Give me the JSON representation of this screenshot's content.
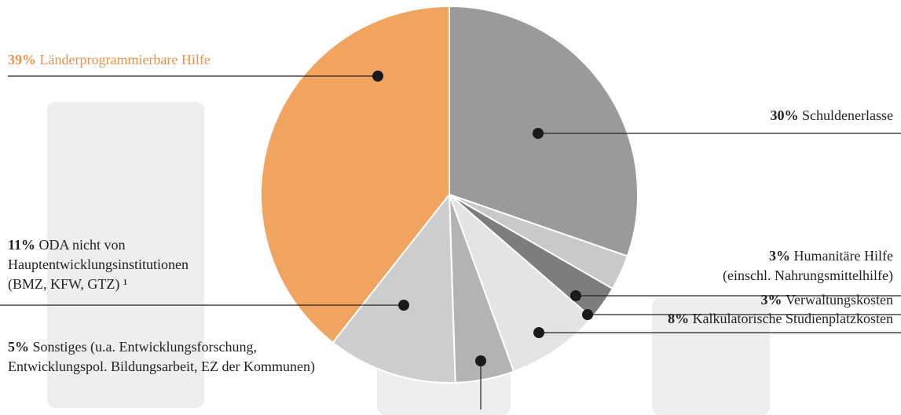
{
  "chart_data": {
    "type": "pie",
    "categories": [
      [
        "Schuldenerlasse"
      ],
      [
        "Humanitäre Hilfe",
        "(einschl. Nahrungsmittelhilfe)"
      ],
      [
        "Verwaltungskosten"
      ],
      [
        "Kalkulatorische Studienplatzkosten"
      ],
      [
        "Sonstiges (u.a. Entwicklungsforschung,",
        "Entwicklungspol. Bildungsarbeit, EZ der Kommunen)"
      ],
      [
        "ODA nicht von",
        "Hauptentwicklungsinstitutionen",
        "(BMZ, KFW, GTZ) ¹"
      ],
      [
        "Länderprogrammierbare Hilfe"
      ]
    ],
    "values": [
      30,
      3,
      3,
      8,
      5,
      11,
      39
    ],
    "value_labels": [
      "30%",
      "3%",
      "3%",
      "8%",
      "5%",
      "11%",
      "39%"
    ],
    "colors": [
      "#9a9a9a",
      "#c9c9c9",
      "#7d7d7d",
      "#e4e4e4",
      "#b3b3b3",
      "#cdcdcd",
      "#f0a45f"
    ],
    "label_colors": [
      "#222222",
      "#222222",
      "#222222",
      "#222222",
      "#222222",
      "#222222",
      "#e8924a"
    ]
  }
}
